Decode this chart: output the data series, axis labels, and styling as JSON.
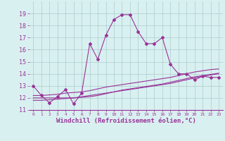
{
  "x": [
    0,
    1,
    2,
    3,
    4,
    5,
    6,
    7,
    8,
    9,
    10,
    11,
    12,
    13,
    14,
    15,
    16,
    17,
    18,
    19,
    20,
    21,
    22,
    23
  ],
  "y_main": [
    13.0,
    12.2,
    11.6,
    12.1,
    12.7,
    11.5,
    12.4,
    16.5,
    15.2,
    17.2,
    18.5,
    18.9,
    18.9,
    17.5,
    16.5,
    16.5,
    17.0,
    14.8,
    14.0,
    14.0,
    13.5,
    13.8,
    13.7,
    13.7
  ],
  "y_line1": [
    12.0,
    12.0,
    12.0,
    12.0,
    12.0,
    12.0,
    12.1,
    12.2,
    12.3,
    12.4,
    12.5,
    12.6,
    12.7,
    12.8,
    12.9,
    13.0,
    13.1,
    13.2,
    13.35,
    13.5,
    13.65,
    13.8,
    13.9,
    14.0
  ],
  "y_line2": [
    11.8,
    11.8,
    11.85,
    11.9,
    11.95,
    12.0,
    12.05,
    12.1,
    12.2,
    12.35,
    12.5,
    12.65,
    12.75,
    12.85,
    12.95,
    13.05,
    13.15,
    13.3,
    13.45,
    13.6,
    13.75,
    13.85,
    13.95,
    14.05
  ],
  "y_line3": [
    12.2,
    12.2,
    12.25,
    12.3,
    12.4,
    12.45,
    12.5,
    12.6,
    12.75,
    12.9,
    13.0,
    13.1,
    13.2,
    13.3,
    13.4,
    13.5,
    13.6,
    13.7,
    13.85,
    14.0,
    14.15,
    14.25,
    14.35,
    14.4
  ],
  "color_main": "#993399",
  "color_lines": "#993399",
  "bg_color": "#d9f0f0",
  "grid_color": "#aacccc",
  "xlabel": "Windchill (Refroidissement éolien,°C)",
  "xlabel_fontsize": 6.5,
  "ytick_fontsize": 6,
  "xtick_fontsize": 4.5,
  "ylim": [
    11,
    20
  ],
  "xlim": [
    -0.5,
    23.5
  ],
  "yticks": [
    11,
    12,
    13,
    14,
    15,
    16,
    17,
    18,
    19
  ],
  "xtick_labels": [
    "0",
    "1",
    "2",
    "3",
    "4",
    "5",
    "6",
    "7",
    "8",
    "9",
    "10",
    "11",
    "12",
    "13",
    "14",
    "15",
    "16",
    "17",
    "18",
    "19",
    "20",
    "21",
    "22",
    "23"
  ]
}
